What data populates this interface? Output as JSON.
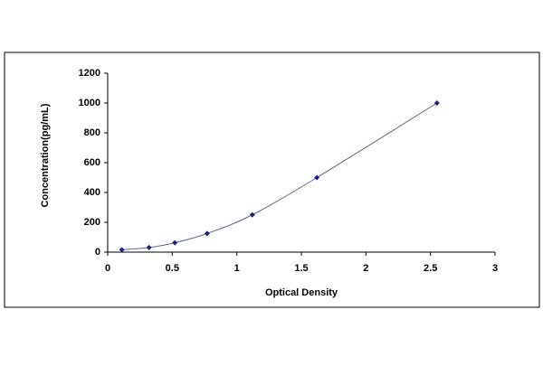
{
  "chart_data": {
    "type": "scatter",
    "x_label": "Optical Density",
    "y_label": "Concentration(pg/mL)",
    "series": [
      {
        "color": "#1a237e",
        "line_color": "#5a6a8a",
        "x": [
          0.11,
          0.32,
          0.52,
          0.77,
          1.12,
          1.62,
          2.55
        ],
        "values": [
          16,
          31,
          63,
          125,
          250,
          500,
          1000
        ]
      }
    ],
    "xlim": [
      0,
      3
    ],
    "xticks": [
      0,
      0.5,
      1,
      1.5,
      2,
      2.5,
      3
    ],
    "ylim": [
      0,
      1200
    ],
    "yticks": [
      0,
      200,
      400,
      600,
      800,
      1000,
      1200
    ],
    "grid": false
  }
}
